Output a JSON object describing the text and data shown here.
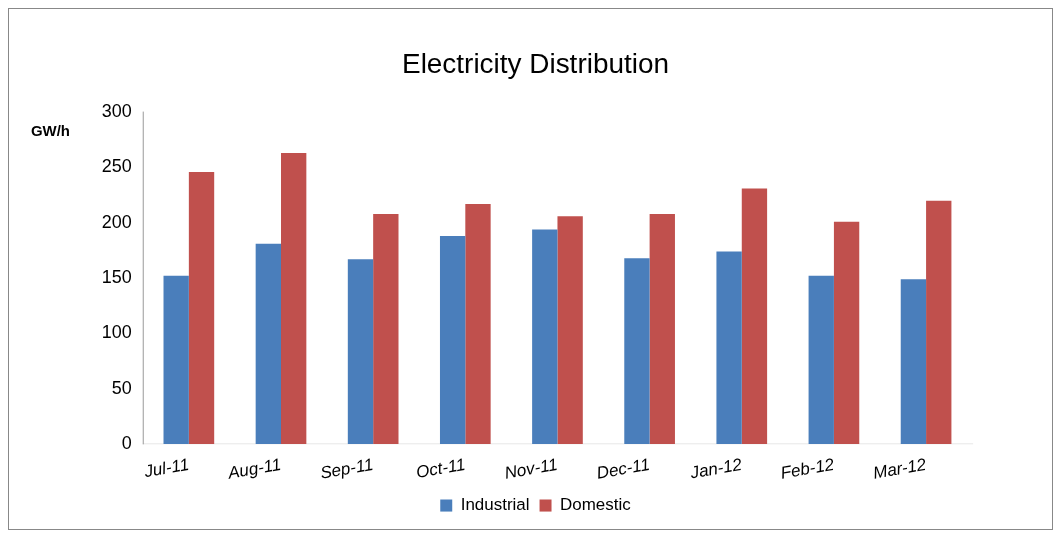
{
  "chart_data": {
    "type": "bar",
    "title": "Electricity Distribution",
    "ylabel": "GW/h",
    "categories": [
      "Jul-11",
      "Aug-11",
      "Sep-11",
      "Oct-11",
      "Nov-11",
      "Dec-11",
      "Jan-12",
      "Feb-12",
      "Mar-12"
    ],
    "series": [
      {
        "name": "Industrial",
        "color": "#4a7ebb",
        "values": [
          152,
          181,
          167,
          188,
          194,
          168,
          174,
          152,
          149
        ]
      },
      {
        "name": "Domestic",
        "color": "#c0504d",
        "values": [
          246,
          263,
          208,
          217,
          206,
          208,
          231,
          201,
          220
        ]
      }
    ],
    "ylim": [
      0,
      300
    ],
    "yticks": [
      0,
      50,
      100,
      150,
      200,
      250,
      300
    ],
    "grid": false,
    "legend": "bottom"
  }
}
